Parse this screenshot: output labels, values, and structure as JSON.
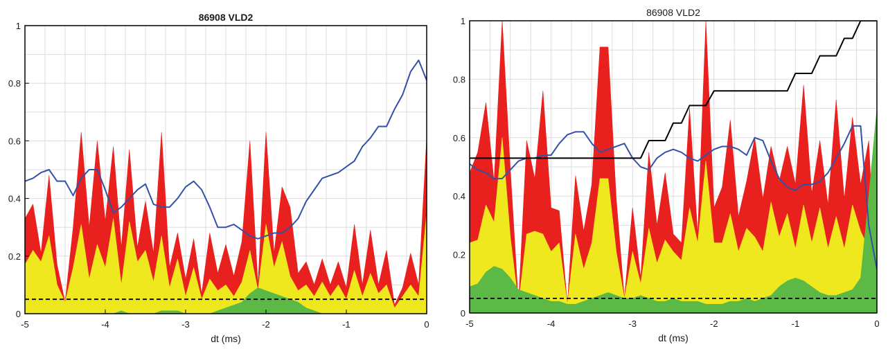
{
  "colors": {
    "red": "#e8211e",
    "yellow": "#f0e81e",
    "green": "#5cb946",
    "blue_line": "#3450a6",
    "black_line": "#000000",
    "grid": "#dddddd",
    "threshold": "#000000"
  },
  "chart_data": [
    {
      "type": "area",
      "title": "86908 VLD2",
      "title_bold": true,
      "xlabel": "dt (ms)",
      "ylabel": "",
      "xlim": [
        -5,
        0
      ],
      "ylim": [
        0,
        1
      ],
      "xticks": [
        -5,
        -4,
        -3,
        -2,
        -1,
        0
      ],
      "xtick_labels": [
        "-5",
        "-4",
        "-3",
        "-2",
        "-1",
        "0"
      ],
      "yticks": [
        0,
        0.2,
        0.4,
        0.6,
        0.8,
        1
      ],
      "ytick_labels": [
        "0",
        "0.2",
        "0.4",
        "0.6",
        "0.8",
        "1"
      ],
      "grid": true,
      "threshold": 0.05,
      "x": [
        -5.0,
        -4.9,
        -4.8,
        -4.7,
        -4.6,
        -4.5,
        -4.4,
        -4.3,
        -4.2,
        -4.1,
        -4.0,
        -3.9,
        -3.8,
        -3.7,
        -3.6,
        -3.5,
        -3.4,
        -3.3,
        -3.2,
        -3.1,
        -3.0,
        -2.9,
        -2.8,
        -2.7,
        -2.6,
        -2.5,
        -2.4,
        -2.3,
        -2.2,
        -2.1,
        -2.0,
        -1.9,
        -1.8,
        -1.7,
        -1.6,
        -1.5,
        -1.4,
        -1.3,
        -1.2,
        -1.1,
        -1.0,
        -0.9,
        -0.8,
        -0.7,
        -0.6,
        -0.5,
        -0.4,
        -0.3,
        -0.2,
        -0.1,
        0.0
      ],
      "series": [
        {
          "values": [
            0.33,
            0.38,
            0.21,
            0.48,
            0.17,
            0.04,
            0.3,
            0.63,
            0.3,
            0.6,
            0.32,
            0.58,
            0.23,
            0.57,
            0.23,
            0.39,
            0.21,
            0.63,
            0.16,
            0.28,
            0.12,
            0.26,
            0.07,
            0.28,
            0.14,
            0.24,
            0.13,
            0.25,
            0.6,
            0.1,
            0.63,
            0.21,
            0.44,
            0.37,
            0.14,
            0.18,
            0.1,
            0.19,
            0.1,
            0.18,
            0.09,
            0.31,
            0.1,
            0.29,
            0.1,
            0.22,
            0.03,
            0.09,
            0.21,
            0.1,
            0.61
          ]
        },
        {
          "values": [
            0.17,
            0.22,
            0.18,
            0.27,
            0.1,
            0.04,
            0.16,
            0.31,
            0.12,
            0.24,
            0.16,
            0.33,
            0.1,
            0.32,
            0.18,
            0.22,
            0.11,
            0.27,
            0.09,
            0.19,
            0.06,
            0.16,
            0.05,
            0.12,
            0.08,
            0.1,
            0.06,
            0.11,
            0.22,
            0.08,
            0.31,
            0.16,
            0.25,
            0.13,
            0.08,
            0.1,
            0.06,
            0.11,
            0.06,
            0.1,
            0.05,
            0.15,
            0.06,
            0.14,
            0.07,
            0.1,
            0.02,
            0.06,
            0.1,
            0.06,
            0.35
          ]
        },
        {
          "values": [
            0.0,
            0.0,
            0.0,
            0.0,
            0.0,
            0.0,
            0.0,
            0.0,
            0.0,
            0.0,
            0.0,
            0.0,
            0.01,
            0.0,
            0.0,
            0.0,
            0.0,
            0.01,
            0.01,
            0.01,
            0.0,
            0.0,
            0.0,
            0.0,
            0.01,
            0.02,
            0.03,
            0.04,
            0.07,
            0.09,
            0.08,
            0.07,
            0.06,
            0.05,
            0.04,
            0.02,
            0.01,
            0.0,
            0.0,
            0.0,
            0.0,
            0.0,
            0.0,
            0.0,
            0.0,
            0.0,
            0.0,
            0.0,
            0.0,
            0.0,
            0.0
          ]
        },
        {
          "values": [
            0.46,
            0.47,
            0.49,
            0.5,
            0.46,
            0.46,
            0.41,
            0.47,
            0.5,
            0.5,
            0.43,
            0.35,
            0.37,
            0.4,
            0.43,
            0.45,
            0.38,
            0.37,
            0.37,
            0.4,
            0.44,
            0.46,
            0.43,
            0.37,
            0.3,
            0.3,
            0.31,
            0.29,
            0.27,
            0.26,
            0.27,
            0.28,
            0.28,
            0.3,
            0.33,
            0.39,
            0.43,
            0.47,
            0.48,
            0.49,
            0.51,
            0.53,
            0.58,
            0.61,
            0.65,
            0.65,
            0.71,
            0.76,
            0.84,
            0.88,
            0.81
          ]
        }
      ]
    },
    {
      "type": "area",
      "title": "86908 VLD2",
      "title_bold": false,
      "xlabel": "dt (ms)",
      "ylabel": "",
      "xlim": [
        -5,
        0
      ],
      "ylim": [
        0,
        1
      ],
      "xticks": [
        -5,
        -4,
        -3,
        -2,
        -1,
        0
      ],
      "xtick_labels": [
        "-5",
        "-4",
        "-3",
        "-2",
        "-1",
        "0"
      ],
      "yticks": [
        0,
        0.2,
        0.4,
        0.6,
        0.8,
        1
      ],
      "ytick_labels": [
        "0",
        "0.2",
        "0.4",
        "0.6",
        "0.8",
        "1"
      ],
      "grid": true,
      "threshold": 0.05,
      "x": [
        -5.0,
        -4.9,
        -4.8,
        -4.7,
        -4.6,
        -4.5,
        -4.4,
        -4.3,
        -4.2,
        -4.1,
        -4.0,
        -3.9,
        -3.8,
        -3.7,
        -3.6,
        -3.5,
        -3.4,
        -3.3,
        -3.2,
        -3.1,
        -3.0,
        -2.9,
        -2.8,
        -2.7,
        -2.6,
        -2.5,
        -2.4,
        -2.3,
        -2.2,
        -2.1,
        -2.0,
        -1.9,
        -1.8,
        -1.7,
        -1.6,
        -1.5,
        -1.4,
        -1.3,
        -1.2,
        -1.1,
        -1.0,
        -0.9,
        -0.8,
        -0.7,
        -0.6,
        -0.5,
        -0.4,
        -0.3,
        -0.2,
        -0.1,
        0.0
      ],
      "series": [
        {
          "values": [
            0.48,
            0.55,
            0.72,
            0.45,
            1.0,
            0.49,
            0.03,
            0.59,
            0.46,
            0.76,
            0.36,
            0.35,
            0.03,
            0.47,
            0.28,
            0.44,
            0.91,
            0.91,
            0.39,
            0.05,
            0.36,
            0.12,
            0.55,
            0.3,
            0.48,
            0.27,
            0.24,
            0.7,
            0.27,
            1.0,
            0.36,
            0.43,
            0.66,
            0.33,
            0.45,
            0.6,
            0.39,
            0.57,
            0.45,
            0.57,
            0.44,
            0.78,
            0.41,
            0.59,
            0.37,
            0.73,
            0.39,
            0.67,
            0.44,
            0.59,
            0.0
          ]
        },
        {
          "values": [
            0.24,
            0.25,
            0.37,
            0.31,
            0.6,
            0.26,
            0.03,
            0.27,
            0.28,
            0.27,
            0.21,
            0.24,
            0.03,
            0.27,
            0.15,
            0.24,
            0.46,
            0.46,
            0.21,
            0.05,
            0.21,
            0.1,
            0.29,
            0.17,
            0.25,
            0.21,
            0.18,
            0.36,
            0.24,
            0.52,
            0.24,
            0.24,
            0.34,
            0.21,
            0.29,
            0.26,
            0.21,
            0.38,
            0.26,
            0.34,
            0.22,
            0.37,
            0.24,
            0.36,
            0.22,
            0.33,
            0.22,
            0.37,
            0.28,
            0.22,
            0.0
          ]
        },
        {
          "values": [
            0.09,
            0.1,
            0.14,
            0.16,
            0.15,
            0.12,
            0.08,
            0.07,
            0.06,
            0.05,
            0.04,
            0.04,
            0.03,
            0.03,
            0.04,
            0.05,
            0.06,
            0.07,
            0.06,
            0.05,
            0.05,
            0.06,
            0.05,
            0.04,
            0.04,
            0.05,
            0.04,
            0.04,
            0.04,
            0.03,
            0.03,
            0.03,
            0.04,
            0.04,
            0.05,
            0.04,
            0.05,
            0.06,
            0.09,
            0.11,
            0.12,
            0.11,
            0.09,
            0.07,
            0.06,
            0.06,
            0.07,
            0.08,
            0.12,
            0.4,
            0.7
          ]
        },
        {
          "values": [
            0.51,
            0.49,
            0.48,
            0.46,
            0.46,
            0.49,
            0.52,
            0.53,
            0.53,
            0.54,
            0.54,
            0.58,
            0.61,
            0.62,
            0.62,
            0.58,
            0.55,
            0.56,
            0.57,
            0.58,
            0.53,
            0.5,
            0.49,
            0.53,
            0.55,
            0.56,
            0.55,
            0.53,
            0.52,
            0.54,
            0.56,
            0.57,
            0.57,
            0.56,
            0.54,
            0.6,
            0.59,
            0.52,
            0.46,
            0.43,
            0.42,
            0.44,
            0.44,
            0.45,
            0.48,
            0.53,
            0.58,
            0.64,
            0.64,
            0.3,
            0.15
          ]
        },
        {
          "values": [
            0.53,
            0.53,
            0.53,
            0.53,
            0.53,
            0.53,
            0.53,
            0.53,
            0.53,
            0.53,
            0.53,
            0.53,
            0.53,
            0.53,
            0.53,
            0.53,
            0.53,
            0.53,
            0.53,
            0.53,
            0.53,
            0.53,
            0.59,
            0.59,
            0.59,
            0.65,
            0.65,
            0.71,
            0.71,
            0.71,
            0.76,
            0.76,
            0.76,
            0.76,
            0.76,
            0.76,
            0.76,
            0.76,
            0.76,
            0.76,
            0.82,
            0.82,
            0.82,
            0.88,
            0.88,
            0.88,
            0.94,
            0.94,
            1.0,
            1.0,
            1.0
          ]
        }
      ]
    }
  ]
}
